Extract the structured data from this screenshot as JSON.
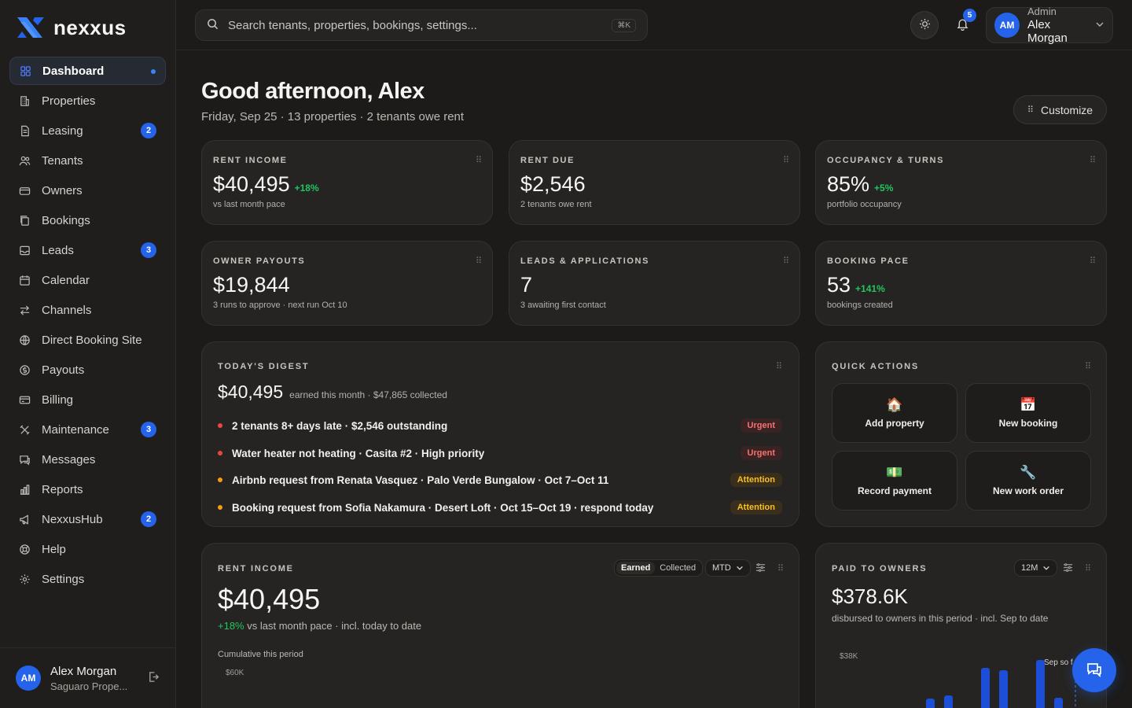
{
  "brand": {
    "name": "nexxus"
  },
  "sidebar": {
    "items": [
      {
        "label": "Dashboard",
        "icon": "dashboard-icon",
        "active": true,
        "dot": true
      },
      {
        "label": "Properties",
        "icon": "building-icon"
      },
      {
        "label": "Leasing",
        "icon": "document-icon",
        "badge": "2"
      },
      {
        "label": "Tenants",
        "icon": "users-icon"
      },
      {
        "label": "Owners",
        "icon": "wallet-icon"
      },
      {
        "label": "Bookings",
        "icon": "copy-icon"
      },
      {
        "label": "Leads",
        "icon": "inbox-icon",
        "badge": "3"
      },
      {
        "label": "Calendar",
        "icon": "calendar-icon"
      },
      {
        "label": "Channels",
        "icon": "arrows-icon"
      },
      {
        "label": "Direct Booking Site",
        "icon": "globe-icon"
      },
      {
        "label": "Payouts",
        "icon": "dollar-icon"
      },
      {
        "label": "Billing",
        "icon": "card-icon"
      },
      {
        "label": "Maintenance",
        "icon": "tools-icon",
        "badge": "3"
      },
      {
        "label": "Messages",
        "icon": "chat-icon"
      },
      {
        "label": "Reports",
        "icon": "bar-chart-icon"
      },
      {
        "label": "NexxusHub",
        "icon": "megaphone-icon",
        "badge": "2"
      },
      {
        "label": "Help",
        "icon": "lifebuoy-icon"
      },
      {
        "label": "Settings",
        "icon": "gear-icon"
      }
    ],
    "footer": {
      "initials": "AM",
      "name": "Alex Morgan",
      "org": "Saguaro Prope..."
    }
  },
  "topbar": {
    "search_placeholder": "Search tenants, properties, bookings, settings...",
    "shortcut": "⌘K",
    "notifications": "5",
    "user": {
      "initials": "AM",
      "role": "Admin",
      "name": "Alex Morgan"
    }
  },
  "header": {
    "greeting": "Good afternoon, Alex",
    "subtitle": "Friday, Sep 25 · 13 properties · 2 tenants owe rent",
    "customize_label": "Customize"
  },
  "kpis": [
    {
      "label": "RENT INCOME",
      "value": "$40,495",
      "delta": "+18%",
      "sub": "vs last month pace"
    },
    {
      "label": "RENT DUE",
      "value": "$2,546",
      "delta": "",
      "sub": "2 tenants owe rent"
    },
    {
      "label": "OCCUPANCY & TURNS",
      "value": "85%",
      "delta": "+5%",
      "sub": "portfolio occupancy"
    },
    {
      "label": "OWNER PAYOUTS",
      "value": "$19,844",
      "delta": "",
      "sub": "3 runs to approve · next run Oct 10"
    },
    {
      "label": "LEADS & APPLICATIONS",
      "value": "7",
      "delta": "",
      "sub": "3 awaiting first contact"
    },
    {
      "label": "BOOKING PACE",
      "value": "53",
      "delta": "+141%",
      "sub": "bookings created"
    }
  ],
  "digest": {
    "label": "TODAY'S DIGEST",
    "amount": "$40,495",
    "amount_sub": "earned this month · $47,865 collected",
    "items": [
      {
        "text": "2 tenants 8+ days late · $2,546 outstanding",
        "tag": "Urgent",
        "level": "urgent"
      },
      {
        "text": "Water heater not heating · Casita #2 · High priority",
        "tag": "Urgent",
        "level": "urgent"
      },
      {
        "text": "Airbnb request from Renata Vasquez · Palo Verde Bungalow · Oct 7–Oct 11",
        "tag": "Attention",
        "level": "attention"
      },
      {
        "text": "Booking request from Sofia Nakamura · Desert Loft · Oct 15–Oct 19 · respond today",
        "tag": "Attention",
        "level": "attention"
      }
    ]
  },
  "quick_actions": {
    "label": "QUICK ACTIONS",
    "items": [
      {
        "label": "Add property",
        "icon": "house-emoji",
        "glyph": "🏠"
      },
      {
        "label": "New booking",
        "icon": "calendar-emoji",
        "glyph": "📅"
      },
      {
        "label": "Record payment",
        "icon": "money-emoji",
        "glyph": "💵"
      },
      {
        "label": "New work order",
        "icon": "wrench-emoji",
        "glyph": "🔧"
      }
    ]
  },
  "rent_income_card": {
    "label": "RENT INCOME",
    "toggle": [
      "Earned",
      "Collected"
    ],
    "period": "MTD",
    "value": "$40,495",
    "delta": "+18%",
    "delta_sub": "vs last month pace · incl. today to date",
    "chart_caption": "Cumulative this period",
    "y_tick": "$60K"
  },
  "paid_to_owners": {
    "label": "PAID TO OWNERS",
    "period": "12M",
    "value": "$378.6K",
    "sub": "disbursed to owners in this period · incl. Sep to date",
    "y_tick": "$38K",
    "marker_label": "Sep so f"
  },
  "colors": {
    "accent": "#2563eb",
    "positive": "#22c55e",
    "urgent": "#ef4444",
    "attention": "#f59e0b"
  }
}
